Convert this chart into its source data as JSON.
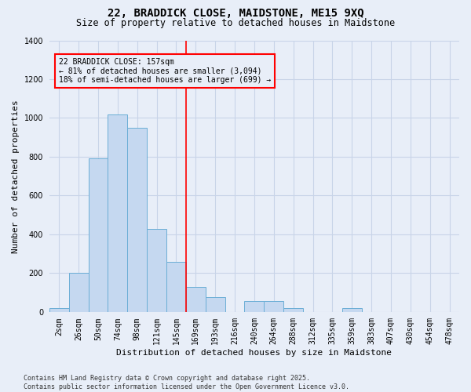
{
  "title": "22, BRADDICK CLOSE, MAIDSTONE, ME15 9XQ",
  "subtitle": "Size of property relative to detached houses in Maidstone",
  "xlabel": "Distribution of detached houses by size in Maidstone",
  "ylabel": "Number of detached properties",
  "footnote": "Contains HM Land Registry data © Crown copyright and database right 2025.\nContains public sector information licensed under the Open Government Licence v3.0.",
  "bin_labels": [
    "2sqm",
    "26sqm",
    "50sqm",
    "74sqm",
    "98sqm",
    "121sqm",
    "145sqm",
    "169sqm",
    "193sqm",
    "216sqm",
    "240sqm",
    "264sqm",
    "288sqm",
    "312sqm",
    "335sqm",
    "359sqm",
    "383sqm",
    "407sqm",
    "430sqm",
    "454sqm",
    "478sqm"
  ],
  "bar_values": [
    20,
    200,
    790,
    1020,
    950,
    430,
    260,
    130,
    75,
    0,
    55,
    55,
    20,
    0,
    0,
    20,
    0,
    0,
    0,
    0,
    0
  ],
  "bar_color": "#c5d8f0",
  "bar_edge_color": "#6baed6",
  "grid_color": "#c8d4e8",
  "background_color": "#e8eef8",
  "vline_color": "red",
  "vline_x": 7,
  "annotation_text": "22 BRADDICK CLOSE: 157sqm\n← 81% of detached houses are smaller (3,094)\n18% of semi-detached houses are larger (699) →",
  "annotation_box_color": "red",
  "ylim": [
    0,
    1400
  ],
  "yticks": [
    0,
    200,
    400,
    600,
    800,
    1000,
    1200,
    1400
  ],
  "title_fontsize": 10,
  "subtitle_fontsize": 8.5,
  "axis_label_fontsize": 8,
  "tick_fontsize": 7,
  "footnote_fontsize": 6
}
